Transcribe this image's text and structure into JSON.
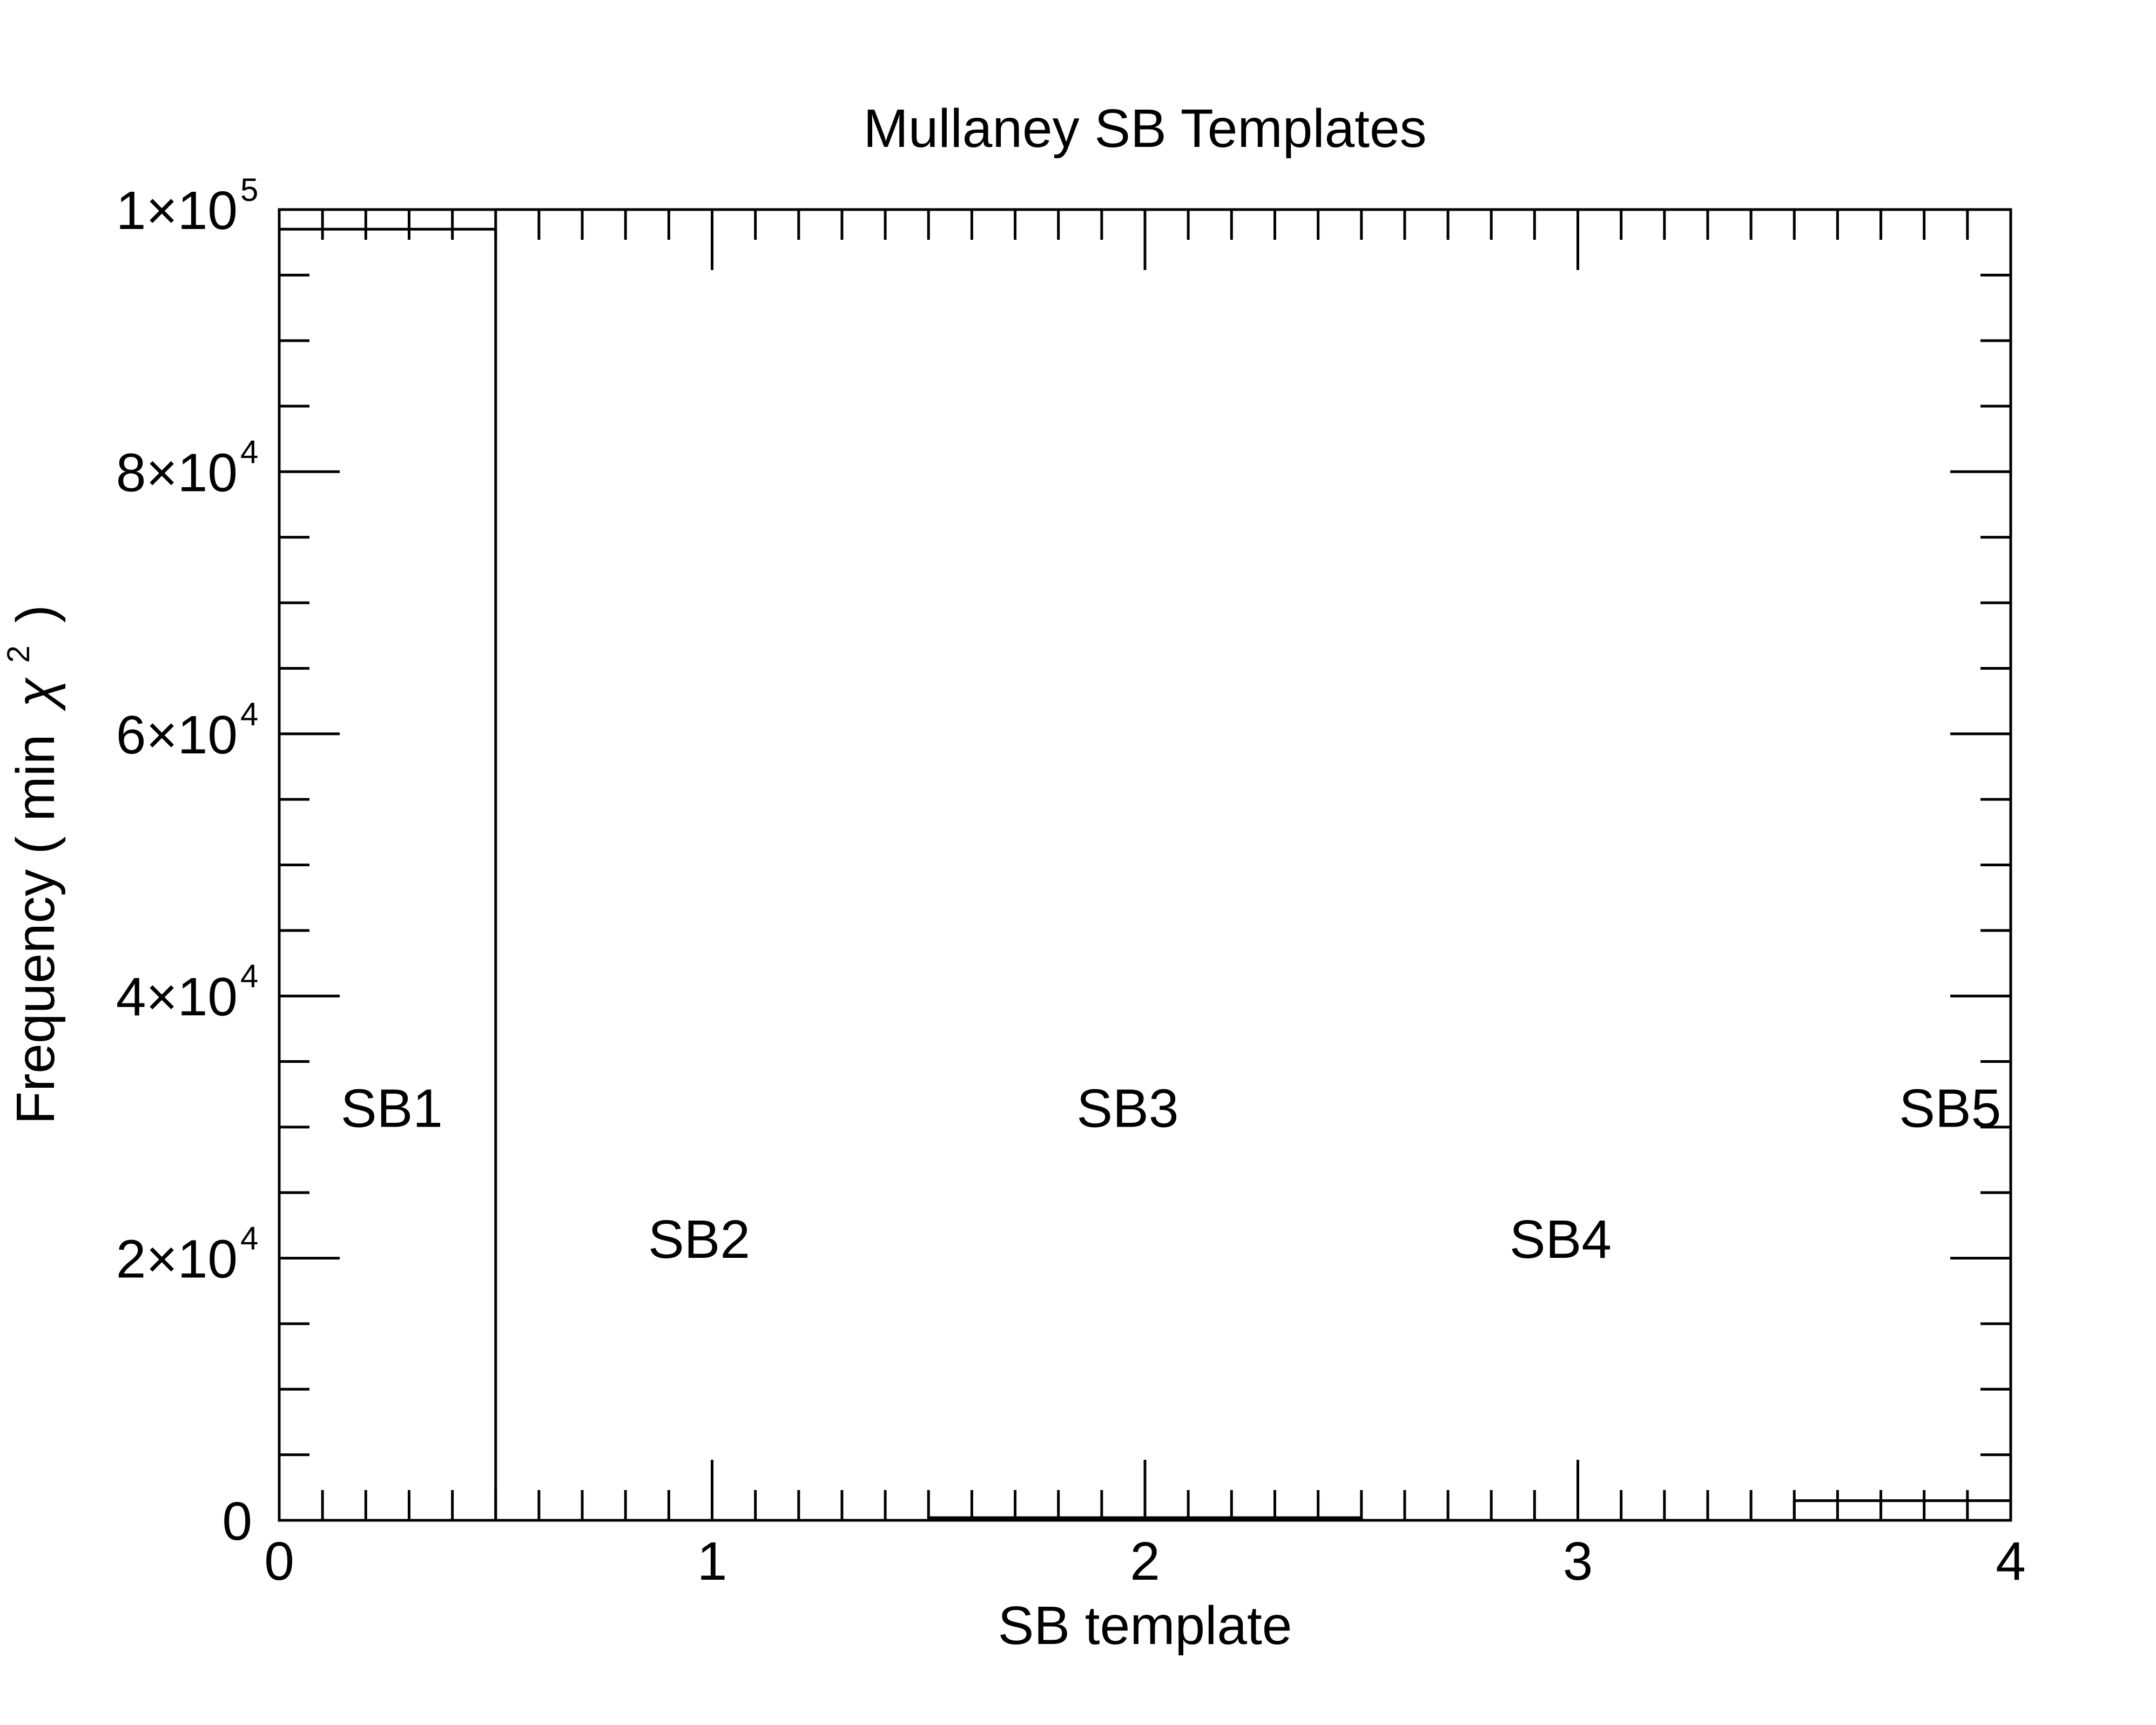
{
  "chart_data": {
    "type": "bar",
    "title": "Mullaney SB Templates",
    "xlabel": "SB template",
    "ylabel": "Frequency ( min",
    "ylabel_symbol": "χ",
    "ylabel_exponent": "2",
    "ylabel_close": ")",
    "xlim": [
      0,
      4
    ],
    "ylim": [
      0,
      100000
    ],
    "grid": false,
    "x_ticks": [
      {
        "value": 0,
        "label": "0"
      },
      {
        "value": 1,
        "label": "1"
      },
      {
        "value": 2,
        "label": "2"
      },
      {
        "value": 3,
        "label": "3"
      },
      {
        "value": 4,
        "label": "4"
      }
    ],
    "y_ticks": [
      {
        "value": 0,
        "mantissa": "0",
        "exponent": ""
      },
      {
        "value": 20000,
        "mantissa": "2×10",
        "exponent": "4"
      },
      {
        "value": 40000,
        "mantissa": "4×10",
        "exponent": "4"
      },
      {
        "value": 60000,
        "mantissa": "6×10",
        "exponent": "4"
      },
      {
        "value": 80000,
        "mantissa": "8×10",
        "exponent": "4"
      },
      {
        "value": 100000,
        "mantissa": "1×10",
        "exponent": "5"
      }
    ],
    "bins": [
      {
        "label": "SB1",
        "x0": 0.0,
        "x1": 0.5,
        "value": 98500
      },
      {
        "label": "SB2",
        "x0": 0.5,
        "x1": 1.5,
        "value": 0
      },
      {
        "label": "SB3",
        "x0": 1.5,
        "x1": 2.5,
        "value": 200
      },
      {
        "label": "SB4",
        "x0": 2.5,
        "x1": 3.5,
        "value": 0
      },
      {
        "label": "SB5",
        "x0": 3.5,
        "x1": 4.0,
        "value": 1500
      }
    ],
    "annotations": [
      {
        "text": "SB1",
        "x": 0.26,
        "y": 31500
      },
      {
        "text": "SB2",
        "x": 0.97,
        "y": 21500
      },
      {
        "text": "SB3",
        "x": 1.96,
        "y": 31500
      },
      {
        "text": "SB4",
        "x": 2.96,
        "y": 21500
      },
      {
        "text": "SB5",
        "x": 3.86,
        "y": 31500
      }
    ]
  }
}
